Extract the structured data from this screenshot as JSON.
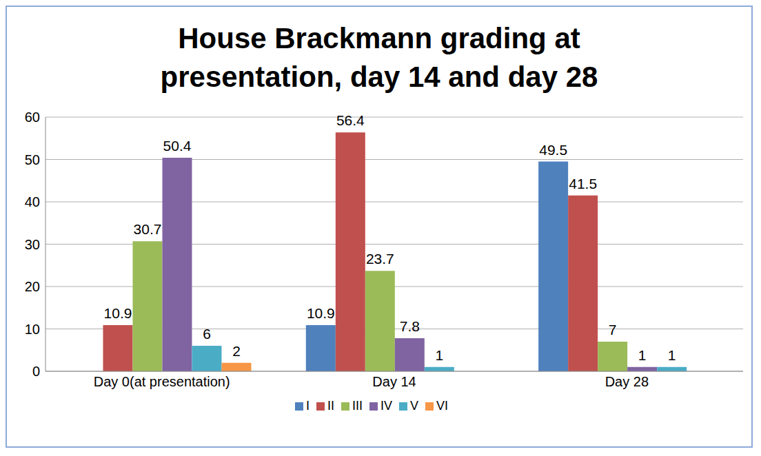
{
  "chart_data": {
    "type": "bar",
    "title": "House Brackmann grading at presentation, day 14 and day 28",
    "categories": [
      "Day 0(at presentation)",
      "Day 14",
      "Day 28"
    ],
    "series": [
      {
        "name": "I",
        "color": "#4f81bd",
        "values": [
          0,
          10.9,
          49.5
        ]
      },
      {
        "name": "II",
        "color": "#c0504d",
        "values": [
          10.9,
          56.4,
          41.5
        ]
      },
      {
        "name": "III",
        "color": "#9bbb59",
        "values": [
          30.7,
          23.7,
          7
        ]
      },
      {
        "name": "IV",
        "color": "#8064a2",
        "values": [
          50.4,
          7.8,
          1
        ]
      },
      {
        "name": "V",
        "color": "#4bacc6",
        "values": [
          6,
          1,
          1
        ]
      },
      {
        "name": "VI",
        "color": "#f79646",
        "values": [
          2,
          0,
          0
        ]
      }
    ],
    "ylim": [
      0,
      60
    ],
    "yticks": [
      0,
      10,
      20,
      30,
      40,
      50,
      60
    ],
    "grid": true,
    "legend": "bottom",
    "data_labels": true
  }
}
